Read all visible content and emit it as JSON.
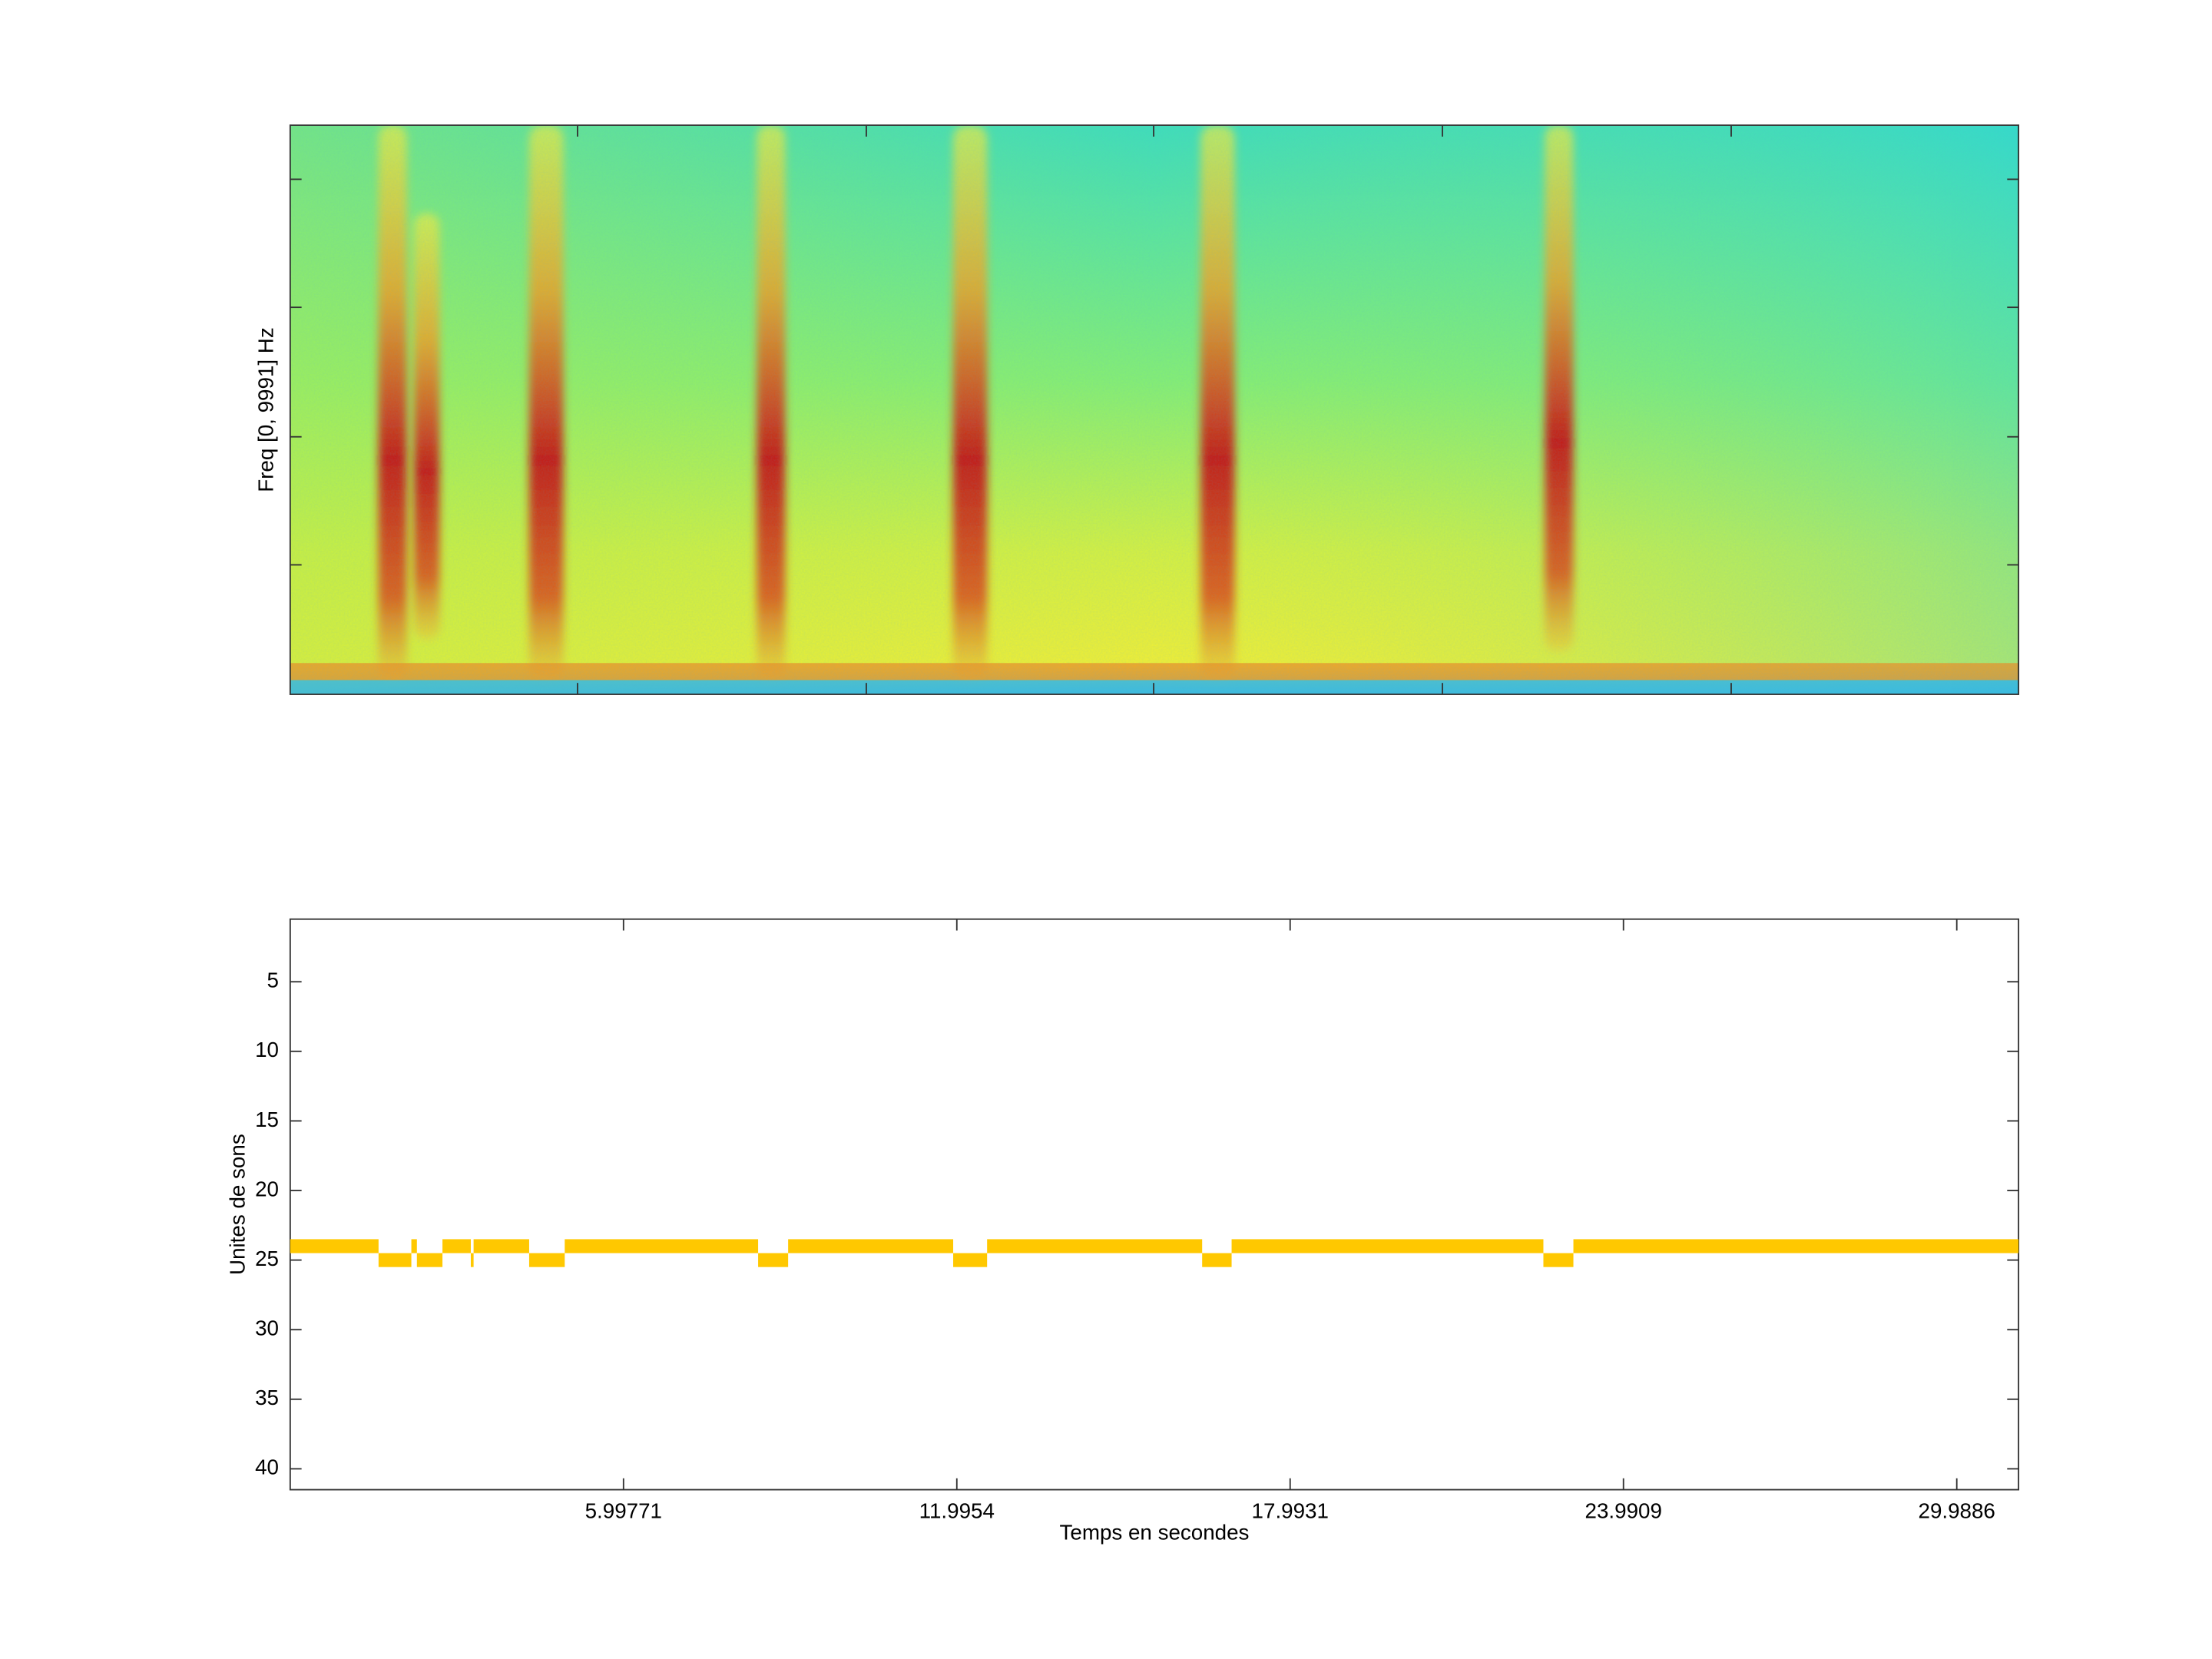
{
  "chart_data": [
    {
      "type": "spectrogram",
      "ylabel": "Freq [0, 9991] Hz"
    },
    {
      "type": "segments",
      "ylabel": "Unites de sons",
      "xlabel": "Temps en secondes",
      "xlim": [
        0,
        31.1
      ],
      "ylim": [
        0.5,
        41.5
      ],
      "y_inverted": true,
      "xticks": [
        5.99771,
        11.9954,
        17.9931,
        23.9909,
        29.9886
      ],
      "yticks": [
        5,
        10,
        15,
        20,
        25,
        30,
        35,
        40
      ],
      "color": "#ffc800",
      "starts": [
        0,
        1.59,
        2.18,
        2.28,
        2.74,
        3.25,
        3.3,
        4.3,
        4.94,
        8.42,
        8.96,
        11.93,
        12.54,
        16.41,
        16.94,
        22.55,
        23.09
      ],
      "ends": [
        1.59,
        2.18,
        2.28,
        2.74,
        3.25,
        3.3,
        4.3,
        4.94,
        8.42,
        8.96,
        11.93,
        12.54,
        16.41,
        16.94,
        22.55,
        23.09,
        31.1
      ],
      "values": [
        24,
        25,
        24,
        25,
        24,
        25,
        24,
        25,
        24,
        25,
        24,
        25,
        24,
        25,
        24,
        25,
        24
      ]
    }
  ]
}
